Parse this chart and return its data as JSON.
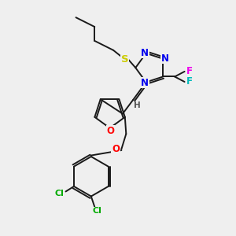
{
  "background_color": "#efefef",
  "bond_color": "#1a1a1a",
  "atom_colors": {
    "N": "#0000ee",
    "S": "#cccc00",
    "O": "#ff0000",
    "Cl": "#00aa00",
    "F1": "#ee00ee",
    "F2": "#00bbbb",
    "H": "#555555",
    "C": "#1a1a1a"
  },
  "lw": 1.4,
  "fs": 8.5,
  "xlim": [
    0,
    10
  ],
  "ylim": [
    0,
    10
  ]
}
